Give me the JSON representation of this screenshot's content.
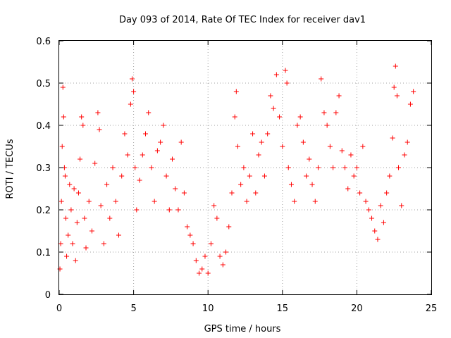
{
  "chart_data": {
    "type": "scatter",
    "title": "Day 093 of 2014, Rate Of TEC Index for receiver dav1",
    "xlabel": "GPS time / hours",
    "ylabel": "ROTI / TECUs",
    "xlim": [
      0,
      25
    ],
    "ylim": [
      0,
      0.6
    ],
    "grid": true,
    "x_ticks": [
      0,
      5,
      10,
      15,
      20,
      25
    ],
    "y_ticks": [
      0,
      0.1,
      0.2,
      0.3,
      0.4,
      0.5,
      0.6
    ],
    "x_tick_labels": [
      "0",
      "5",
      "10",
      "15",
      "20",
      "25"
    ],
    "y_tick_labels": [
      "0",
      "0.1",
      "0.2",
      "0.3",
      "0.4",
      "0.5",
      "0.6"
    ],
    "marker": "+",
    "color": "#ff0000",
    "series": [
      {
        "name": "dav1",
        "x_range": [
          0,
          23.8
        ],
        "values": [
          [
            0.05,
            0.06
          ],
          [
            0.1,
            0.12
          ],
          [
            0.15,
            0.22
          ],
          [
            0.2,
            0.35
          ],
          [
            0.25,
            0.49
          ],
          [
            0.3,
            0.42
          ],
          [
            0.35,
            0.3
          ],
          [
            0.4,
            0.28
          ],
          [
            0.45,
            0.18
          ],
          [
            0.5,
            0.09
          ],
          [
            0.6,
            0.14
          ],
          [
            0.7,
            0.26
          ],
          [
            0.8,
            0.2
          ],
          [
            0.9,
            0.12
          ],
          [
            1.0,
            0.25
          ],
          [
            1.1,
            0.08
          ],
          [
            1.2,
            0.17
          ],
          [
            1.3,
            0.24
          ],
          [
            1.4,
            0.32
          ],
          [
            1.5,
            0.42
          ],
          [
            1.6,
            0.4
          ],
          [
            1.7,
            0.18
          ],
          [
            1.8,
            0.11
          ],
          [
            2.0,
            0.22
          ],
          [
            2.2,
            0.15
          ],
          [
            2.4,
            0.31
          ],
          [
            2.6,
            0.43
          ],
          [
            2.7,
            0.39
          ],
          [
            2.8,
            0.21
          ],
          [
            3.0,
            0.12
          ],
          [
            3.2,
            0.26
          ],
          [
            3.4,
            0.18
          ],
          [
            3.6,
            0.3
          ],
          [
            3.8,
            0.22
          ],
          [
            4.0,
            0.14
          ],
          [
            4.2,
            0.28
          ],
          [
            4.4,
            0.38
          ],
          [
            4.6,
            0.33
          ],
          [
            4.8,
            0.45
          ],
          [
            4.9,
            0.51
          ],
          [
            5.0,
            0.48
          ],
          [
            5.1,
            0.3
          ],
          [
            5.2,
            0.2
          ],
          [
            5.4,
            0.27
          ],
          [
            5.6,
            0.33
          ],
          [
            5.8,
            0.38
          ],
          [
            6.0,
            0.43
          ],
          [
            6.2,
            0.3
          ],
          [
            6.4,
            0.22
          ],
          [
            6.6,
            0.34
          ],
          [
            6.8,
            0.36
          ],
          [
            7.0,
            0.4
          ],
          [
            7.2,
            0.28
          ],
          [
            7.4,
            0.2
          ],
          [
            7.6,
            0.32
          ],
          [
            7.8,
            0.25
          ],
          [
            8.0,
            0.2
          ],
          [
            8.2,
            0.36
          ],
          [
            8.4,
            0.24
          ],
          [
            8.6,
            0.16
          ],
          [
            8.8,
            0.14
          ],
          [
            9.0,
            0.12
          ],
          [
            9.2,
            0.08
          ],
          [
            9.4,
            0.05
          ],
          [
            9.6,
            0.06
          ],
          [
            9.8,
            0.09
          ],
          [
            10.0,
            0.05
          ],
          [
            10.2,
            0.12
          ],
          [
            10.4,
            0.21
          ],
          [
            10.6,
            0.18
          ],
          [
            10.8,
            0.09
          ],
          [
            11.0,
            0.07
          ],
          [
            11.2,
            0.1
          ],
          [
            11.4,
            0.16
          ],
          [
            11.6,
            0.24
          ],
          [
            11.8,
            0.42
          ],
          [
            11.9,
            0.48
          ],
          [
            12.0,
            0.35
          ],
          [
            12.2,
            0.26
          ],
          [
            12.4,
            0.3
          ],
          [
            12.6,
            0.22
          ],
          [
            12.8,
            0.28
          ],
          [
            13.0,
            0.38
          ],
          [
            13.2,
            0.24
          ],
          [
            13.4,
            0.33
          ],
          [
            13.6,
            0.36
          ],
          [
            13.8,
            0.28
          ],
          [
            14.0,
            0.38
          ],
          [
            14.2,
            0.47
          ],
          [
            14.4,
            0.44
          ],
          [
            14.6,
            0.52
          ],
          [
            14.8,
            0.42
          ],
          [
            15.0,
            0.35
          ],
          [
            15.2,
            0.53
          ],
          [
            15.3,
            0.5
          ],
          [
            15.4,
            0.3
          ],
          [
            15.6,
            0.26
          ],
          [
            15.8,
            0.22
          ],
          [
            16.0,
            0.4
          ],
          [
            16.2,
            0.42
          ],
          [
            16.4,
            0.36
          ],
          [
            16.6,
            0.28
          ],
          [
            16.8,
            0.32
          ],
          [
            17.0,
            0.26
          ],
          [
            17.2,
            0.22
          ],
          [
            17.4,
            0.3
          ],
          [
            17.6,
            0.51
          ],
          [
            17.8,
            0.43
          ],
          [
            18.0,
            0.4
          ],
          [
            18.2,
            0.35
          ],
          [
            18.4,
            0.3
          ],
          [
            18.6,
            0.43
          ],
          [
            18.8,
            0.47
          ],
          [
            19.0,
            0.34
          ],
          [
            19.2,
            0.3
          ],
          [
            19.4,
            0.25
          ],
          [
            19.6,
            0.33
          ],
          [
            19.8,
            0.28
          ],
          [
            20.0,
            0.3
          ],
          [
            20.2,
            0.24
          ],
          [
            20.4,
            0.35
          ],
          [
            20.6,
            0.22
          ],
          [
            20.8,
            0.2
          ],
          [
            21.0,
            0.18
          ],
          [
            21.2,
            0.15
          ],
          [
            21.4,
            0.13
          ],
          [
            21.6,
            0.21
          ],
          [
            21.8,
            0.17
          ],
          [
            22.0,
            0.24
          ],
          [
            22.2,
            0.28
          ],
          [
            22.4,
            0.37
          ],
          [
            22.5,
            0.49
          ],
          [
            22.6,
            0.54
          ],
          [
            22.7,
            0.47
          ],
          [
            22.8,
            0.3
          ],
          [
            23.0,
            0.21
          ],
          [
            23.2,
            0.33
          ],
          [
            23.4,
            0.36
          ],
          [
            23.6,
            0.45
          ],
          [
            23.8,
            0.48
          ]
        ]
      }
    ]
  }
}
